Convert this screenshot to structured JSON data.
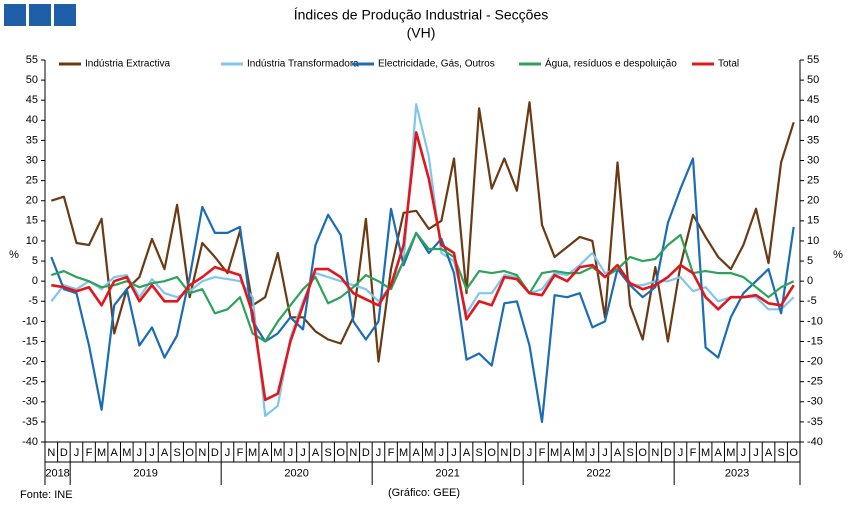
{
  "chart_data": {
    "type": "line",
    "title": "Índices de Produção Industrial - Secções",
    "subtitle": "(VH)",
    "ylabel": "%",
    "source": "Fonte: INE",
    "credit": "(Gráfico: GEE)",
    "categories": [
      "N",
      "D",
      "J",
      "F",
      "M",
      "A",
      "M",
      "J",
      "J",
      "A",
      "S",
      "O",
      "N",
      "D",
      "J",
      "F",
      "M",
      "A",
      "M",
      "J",
      "J",
      "A",
      "S",
      "O",
      "N",
      "D",
      "J",
      "F",
      "M",
      "A",
      "M",
      "J",
      "J",
      "A",
      "S",
      "O",
      "N",
      "D",
      "J",
      "F",
      "M",
      "A",
      "M",
      "J",
      "J",
      "A",
      "S",
      "O",
      "N",
      "D",
      "J",
      "F",
      "M",
      "A",
      "M",
      "J",
      "J",
      "A",
      "S",
      "O"
    ],
    "years": [
      "2018",
      "2019",
      "2020",
      "2021",
      "2022",
      "2023"
    ],
    "ylim": [
      -40,
      55
    ],
    "yticks": [
      -40,
      -35,
      -30,
      -25,
      -20,
      -15,
      -10,
      -5,
      0,
      5,
      10,
      15,
      20,
      25,
      30,
      35,
      40,
      45,
      50,
      55
    ],
    "grid": false,
    "legend": "top",
    "series": [
      {
        "name": "Indústria Extractiva",
        "color": "#6b3a12",
        "values": [
          20,
          21,
          9.5,
          9,
          15.5,
          -13,
          -2,
          1,
          10.5,
          3,
          19,
          -4,
          9.5,
          6,
          2,
          12.5,
          -6,
          -4,
          7,
          -9,
          -9,
          -12.5,
          -14.5,
          -15.5,
          -9,
          15.5,
          -20,
          3,
          17,
          17.5,
          13,
          15,
          30.5,
          -3,
          43,
          23,
          30.5,
          22.5,
          44.5,
          14,
          6,
          8.5,
          11,
          10,
          -9,
          29.5,
          -6,
          -14.5,
          3.5,
          -15,
          4,
          16.5,
          11,
          6,
          3,
          9,
          18,
          4.5,
          29.5,
          39.5
        ]
      },
      {
        "name": "Indústria Transformadora",
        "color": "#7fc6ee",
        "values": [
          -5,
          -1,
          -2,
          0,
          -2,
          1,
          1.5,
          -4,
          0.5,
          -3,
          -4,
          -2.5,
          0,
          1,
          0.5,
          0,
          -4,
          -33.5,
          -31,
          -14,
          -5,
          2,
          1,
          0,
          -1,
          -2,
          -5,
          -1,
          5,
          44,
          31,
          7,
          5,
          -8,
          -3,
          -3,
          1.5,
          1,
          -3,
          -2,
          2,
          1.5,
          4,
          7,
          2,
          3,
          -1,
          -1,
          0,
          0,
          1,
          -2.5,
          -1.5,
          -5,
          -4,
          -4,
          -4,
          -7,
          -7,
          -4
        ]
      },
      {
        "name": "Electricidade, Gás, Outros",
        "color": "#1a6db5",
        "values": [
          6,
          -2,
          -3,
          -16,
          -32,
          -6,
          -2,
          -16,
          -11.5,
          -19,
          -13.5,
          1,
          18.5,
          12,
          12,
          13.5,
          -10,
          -15,
          -13,
          -9,
          -12,
          9,
          16.5,
          11.5,
          -10,
          -14.5,
          -10,
          18,
          4,
          12,
          7,
          10.5,
          2,
          -19.5,
          -18,
          -21,
          -5.5,
          -5,
          -16,
          -35,
          -3.5,
          -4,
          -3,
          -11.5,
          -10,
          3,
          -1,
          -4,
          -1.5,
          14.5,
          23,
          30.5,
          -16.5,
          -19,
          -9,
          -3,
          0,
          3,
          -8,
          13.5
        ]
      },
      {
        "name": "Água, resíduos e despoluição",
        "color": "#2ca25a",
        "values": [
          1.5,
          2.5,
          1,
          0,
          -1.5,
          -1,
          0,
          -1.5,
          -0.5,
          0,
          1,
          -3,
          -2,
          -8,
          -7,
          -4,
          -13,
          -15,
          -10,
          -6,
          -2,
          1,
          -5.5,
          -4,
          -1.5,
          1.5,
          0,
          -2,
          5,
          12,
          8,
          8,
          6,
          -2,
          2.5,
          2,
          2.5,
          1.5,
          -3,
          2,
          2.5,
          2,
          2,
          3.5,
          1,
          3,
          6,
          5,
          5.5,
          9,
          11.5,
          2,
          2.5,
          2,
          2,
          1,
          -1.5,
          -4,
          -1.5,
          0
        ]
      },
      {
        "name": "Total",
        "color": "#e3161b",
        "values": [
          -1,
          -1.5,
          -2.5,
          -1.5,
          -6,
          0,
          1,
          -5,
          -1,
          -5,
          -5,
          -1,
          1,
          3.5,
          2.5,
          1.5,
          -8,
          -29.5,
          -28,
          -15,
          -6,
          3,
          3,
          1,
          -3,
          -4.5,
          -6,
          -1,
          9,
          37,
          25.5,
          9,
          7,
          -9.5,
          -5,
          -6,
          1,
          0.5,
          -3,
          -3.5,
          1.5,
          0,
          3.5,
          4,
          1,
          4,
          -0.5,
          -2,
          -1,
          1,
          4,
          2,
          -4,
          -7,
          -4,
          -4,
          -3.5,
          -5.5,
          -6,
          -1
        ]
      }
    ]
  }
}
